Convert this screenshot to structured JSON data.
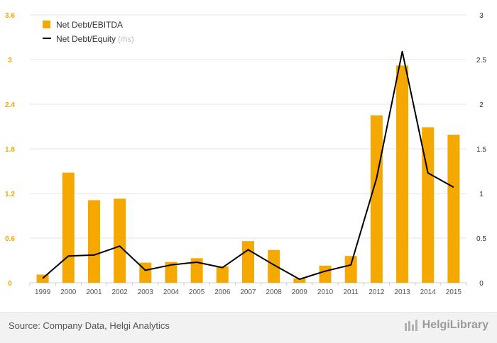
{
  "chart_data": {
    "type": "bar",
    "categories": [
      "1999",
      "2000",
      "2001",
      "2002",
      "2003",
      "2004",
      "2005",
      "2006",
      "2007",
      "2008",
      "2009",
      "2010",
      "2011",
      "2012",
      "2013",
      "2014",
      "2015"
    ],
    "series": [
      {
        "name": "Net Debt/EBITDA",
        "type": "bar",
        "axis": "left",
        "color": "#f5a800",
        "values": [
          0.11,
          1.48,
          1.11,
          1.13,
          0.27,
          0.28,
          0.33,
          0.22,
          0.56,
          0.44,
          0.06,
          0.23,
          0.36,
          2.25,
          2.92,
          2.09,
          1.99
        ]
      },
      {
        "name": "Net Debt/Equity",
        "name_suffix": "(rhs)",
        "type": "line",
        "axis": "right",
        "color": "#000000",
        "values": [
          0.05,
          0.3,
          0.31,
          0.41,
          0.14,
          0.2,
          0.23,
          0.17,
          0.37,
          0.2,
          0.04,
          0.13,
          0.2,
          1.17,
          2.59,
          1.23,
          1.07
        ]
      }
    ],
    "y_left": {
      "ticks": [
        "0",
        "0.6",
        "1.2",
        "1.8",
        "2.4",
        "3",
        "3.6"
      ],
      "ylim": [
        0,
        3.6
      ],
      "color": "#f5a800"
    },
    "y_right": {
      "ticks": [
        "0",
        "0.5",
        "1",
        "1.5",
        "2",
        "2.5",
        "3"
      ],
      "ylim": [
        0,
        3
      ]
    },
    "grid": true,
    "legend_position": "top-left"
  },
  "footer": {
    "source": "Source: Company Data, Helgi Analytics",
    "brand": "HelgiLibrary"
  }
}
